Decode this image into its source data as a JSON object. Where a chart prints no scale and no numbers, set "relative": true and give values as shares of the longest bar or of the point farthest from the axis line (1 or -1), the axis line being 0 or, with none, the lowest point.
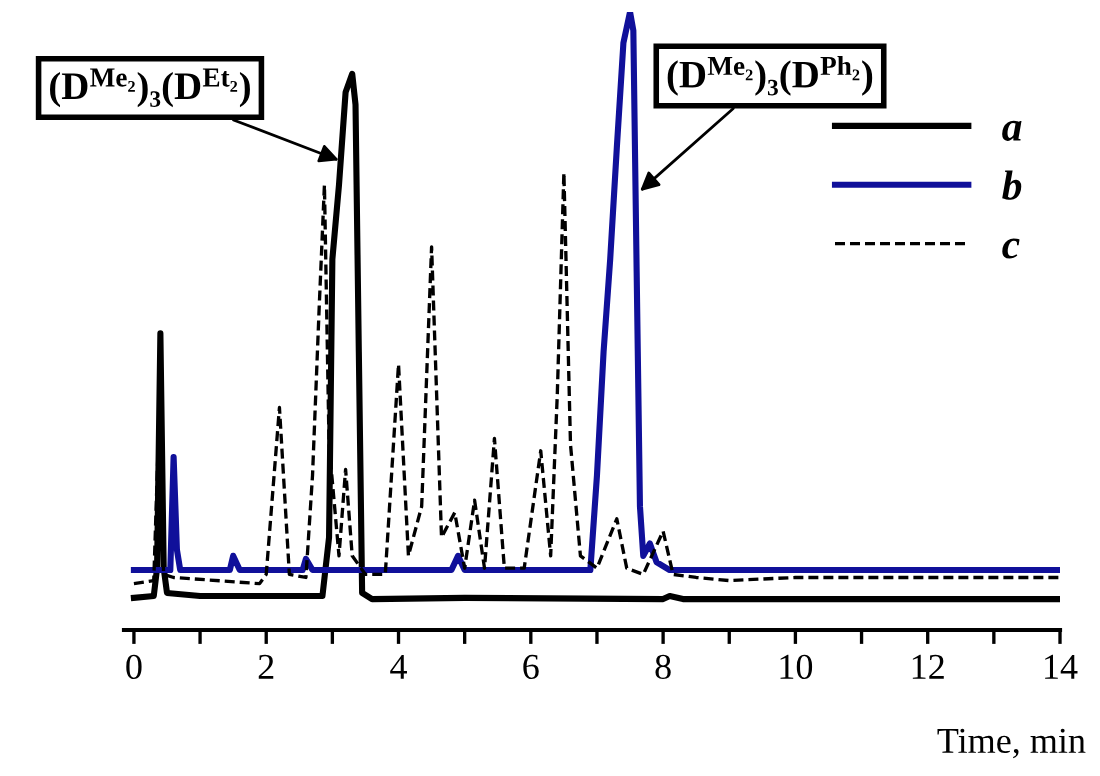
{
  "chart_data": {
    "type": "line",
    "relative": true,
    "xlabel": "Time, min",
    "xlim": [
      -0.15,
      14
    ],
    "xticks": [
      0,
      {
        "value": 1,
        "label": null
      },
      2,
      {
        "value": 3,
        "label": null
      },
      4,
      {
        "value": 5,
        "label": null
      },
      6,
      {
        "value": 7,
        "label": null
      },
      8,
      {
        "value": 9,
        "label": null
      },
      10,
      {
        "value": 11,
        "label": null
      },
      12,
      {
        "value": 13,
        "label": null
      },
      14
    ],
    "legend": "top right",
    "grid": false,
    "marker": "none",
    "annotations": [
      {
        "text": "(D$^{Me₂}$)₃(D$^{Et₂}$)",
        "x": 3.1,
        "y": 0.76
      },
      {
        "text": "(D$^{Me₂}$)₃(D$^{Ph₂}$)",
        "x": 7.65,
        "y": 0.71
      }
    ],
    "series": [
      {
        "name": "a",
        "color": "#000000",
        "line_style": "solid",
        "x": [
          0,
          0.3,
          0.35,
          0.4,
          0.45,
          0.5,
          1.0,
          2.0,
          2.85,
          2.95,
          3.0,
          3.1,
          3.2,
          3.3,
          3.35,
          3.4,
          3.45,
          3.6,
          5,
          8,
          8.1,
          8.3,
          14
        ],
        "values": [
          0.052,
          0.055,
          0.1,
          0.48,
          0.1,
          0.06,
          0.055,
          0.055,
          0.055,
          0.15,
          0.6,
          0.72,
          0.87,
          0.9,
          0.85,
          0.45,
          0.06,
          0.05,
          0.052,
          0.05,
          0.055,
          0.05,
          0.05
        ]
      },
      {
        "name": "b",
        "color": "#10109a",
        "line_style": "solid",
        "x": [
          0,
          0.55,
          0.6,
          0.65,
          0.7,
          1.45,
          1.5,
          1.6,
          2.55,
          2.6,
          2.7,
          4.8,
          4.9,
          5.0,
          6.9,
          7.0,
          7.1,
          7.2,
          7.3,
          7.4,
          7.5,
          7.55,
          7.6,
          7.65,
          7.7,
          7.8,
          7.9,
          8.1,
          14
        ],
        "values": [
          0.097,
          0.097,
          0.28,
          0.13,
          0.097,
          0.097,
          0.12,
          0.097,
          0.097,
          0.115,
          0.097,
          0.097,
          0.12,
          0.097,
          0.097,
          0.25,
          0.45,
          0.6,
          0.78,
          0.95,
          1.0,
          0.97,
          0.58,
          0.2,
          0.12,
          0.14,
          0.11,
          0.097,
          0.097
        ]
      },
      {
        "name": "c",
        "color": "#000000",
        "line_style": "dashed",
        "x": [
          0,
          0.3,
          0.37,
          0.45,
          0.6,
          1.9,
          2.0,
          2.2,
          2.35,
          2.6,
          2.7,
          2.8,
          2.88,
          2.95,
          3.1,
          3.2,
          3.3,
          3.5,
          3.8,
          4.0,
          4.15,
          4.35,
          4.5,
          4.65,
          4.85,
          5.0,
          5.15,
          5.3,
          5.45,
          5.6,
          5.9,
          6.15,
          6.3,
          6.4,
          6.5,
          6.6,
          6.75,
          7.0,
          7.3,
          7.45,
          7.7,
          8.0,
          8.15,
          8.5,
          9,
          10,
          14
        ],
        "values": [
          0.075,
          0.08,
          0.31,
          0.09,
          0.085,
          0.075,
          0.09,
          0.36,
          0.09,
          0.085,
          0.25,
          0.52,
          0.72,
          0.3,
          0.12,
          0.26,
          0.12,
          0.09,
          0.09,
          0.43,
          0.12,
          0.2,
          0.62,
          0.15,
          0.19,
          0.1,
          0.21,
          0.1,
          0.31,
          0.1,
          0.1,
          0.29,
          0.12,
          0.38,
          0.74,
          0.3,
          0.12,
          0.1,
          0.18,
          0.1,
          0.09,
          0.16,
          0.09,
          0.085,
          0.08,
          0.085,
          0.085
        ]
      }
    ]
  }
}
